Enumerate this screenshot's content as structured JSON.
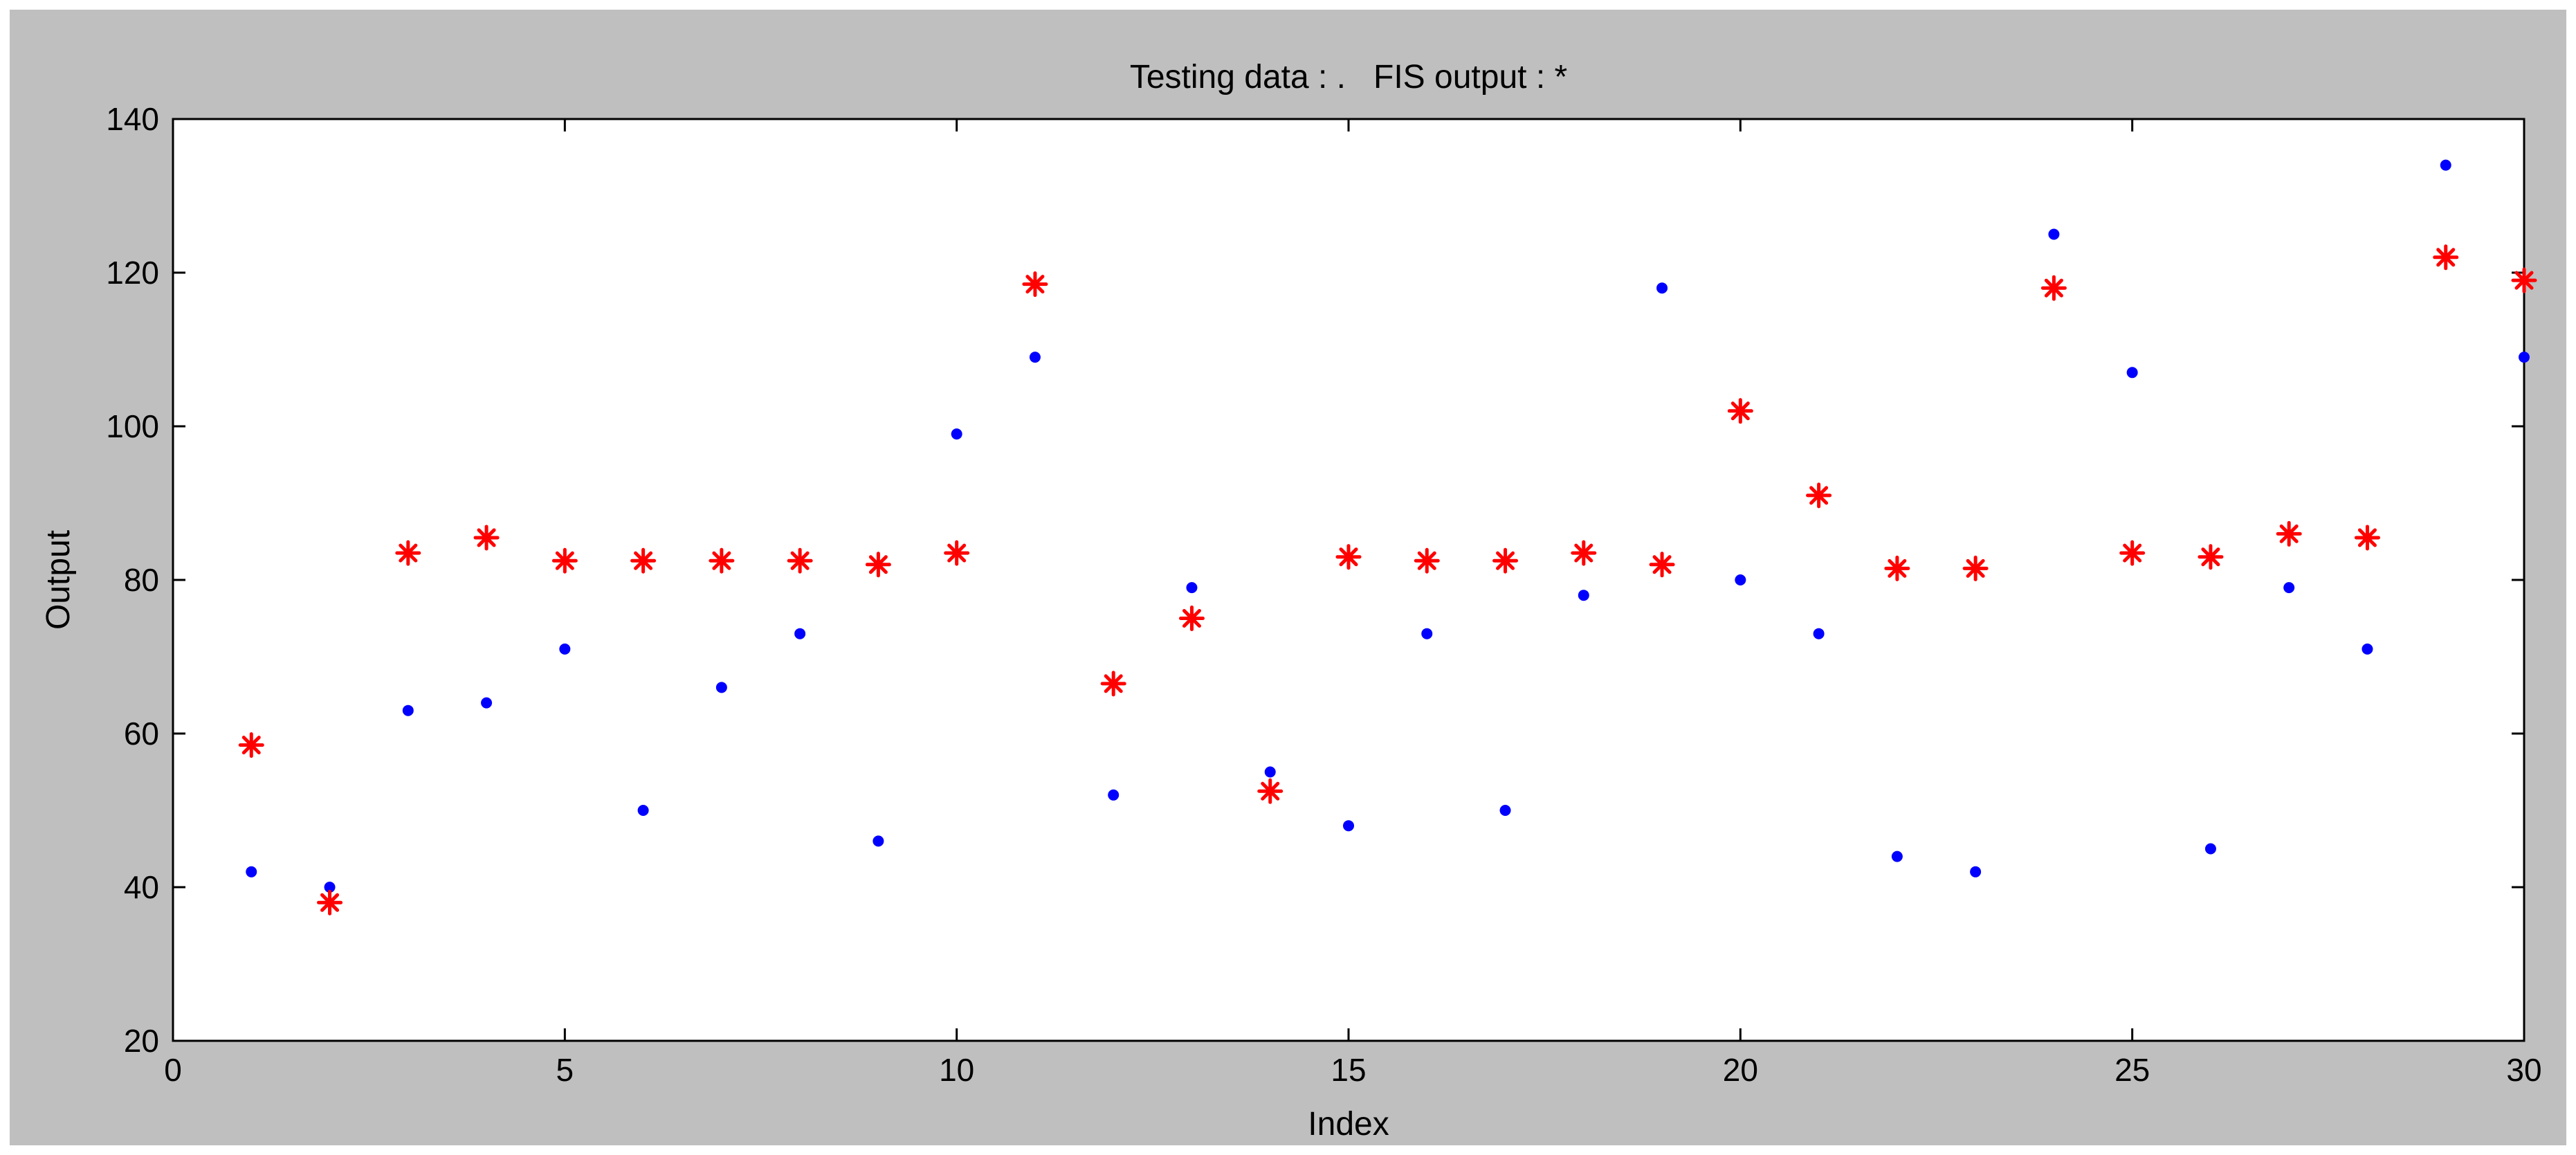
{
  "figure": {
    "background_color": "#bfbfbf",
    "axes_color": "#ffffff"
  },
  "chart_data": {
    "type": "scatter",
    "title": "Testing data : .   FIS output : *",
    "xlabel": "Index",
    "ylabel": "Output",
    "xlim": [
      0,
      30
    ],
    "ylim": [
      20,
      140
    ],
    "x_ticks": [
      0,
      5,
      10,
      15,
      20,
      25,
      30
    ],
    "y_ticks": [
      20,
      40,
      60,
      80,
      100,
      120,
      140
    ],
    "grid": false,
    "x": [
      1,
      2,
      3,
      4,
      5,
      6,
      7,
      8,
      9,
      10,
      11,
      12,
      13,
      14,
      15,
      16,
      17,
      18,
      19,
      20,
      21,
      22,
      23,
      24,
      25,
      26,
      27,
      28,
      29,
      30
    ],
    "series": [
      {
        "marker": "dot",
        "color": "#0000ff",
        "values": [
          42,
          40,
          63,
          64,
          71,
          50,
          66,
          73,
          46,
          99,
          109,
          52,
          79,
          55,
          48,
          73,
          50,
          78,
          118,
          80,
          73,
          44,
          42,
          125,
          107,
          45,
          79,
          71,
          134,
          109
        ]
      },
      {
        "marker": "asterisk",
        "color": "#ff0000",
        "values": [
          58.5,
          38,
          83.5,
          85.5,
          82.5,
          82.5,
          82.5,
          82.5,
          82,
          83.5,
          118.5,
          66.5,
          75,
          52.5,
          83,
          82.5,
          82.5,
          83.5,
          82,
          102,
          91,
          81.5,
          81.5,
          118,
          83.5,
          83,
          86,
          85.5,
          122,
          119
        ]
      }
    ]
  }
}
